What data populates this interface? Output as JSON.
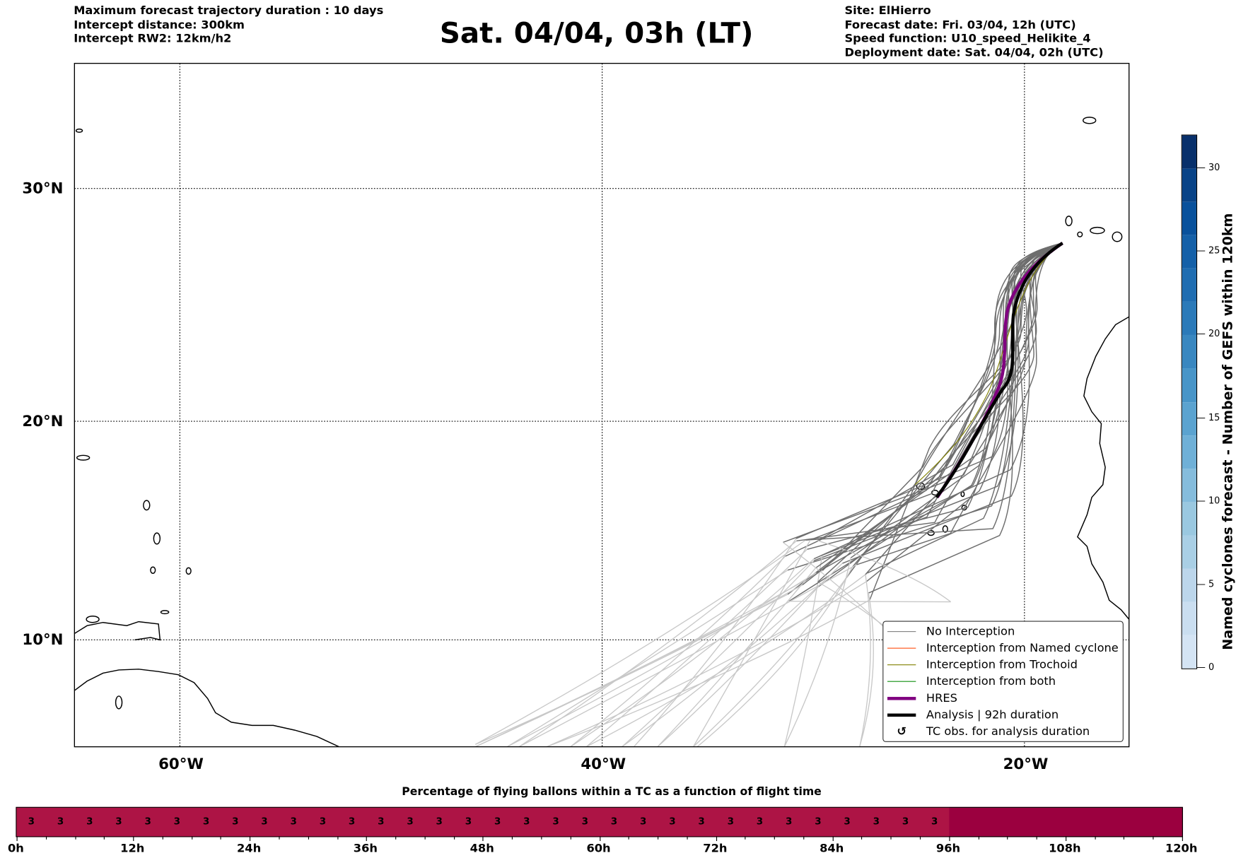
{
  "header": {
    "left": [
      "Maximum forecast trajectory duration : 10 days",
      "Intercept distance: 300km",
      "Intercept RW2: 12km/h2"
    ],
    "title": "Sat. 04/04, 03h (LT)",
    "right": [
      "Site: ElHierro",
      "Forecast date: Fri. 03/04, 12h (UTC)",
      "Speed function: U10_speed_Helikite_4",
      "Deployment date: Sat. 04/04, 02h (UTC)"
    ]
  },
  "map": {
    "lat_labels": [
      "30°N",
      "20°N",
      "10°N"
    ],
    "lon_labels": [
      "60°W",
      "40°W",
      "20°W"
    ]
  },
  "legend": [
    {
      "label": "No Interception",
      "color": "#808080",
      "kind": "thin"
    },
    {
      "label": "Interception from Named cyclone",
      "color": "#ff5010",
      "kind": "thin"
    },
    {
      "label": "Interception from Trochoid",
      "color": "#808000",
      "kind": "thin"
    },
    {
      "label": "Interception from both",
      "color": "#109010",
      "kind": "thin"
    },
    {
      "label": "HRES",
      "color": "#800080",
      "kind": "thick"
    },
    {
      "label": "Analysis | 92h duration",
      "color": "#000000",
      "kind": "thick"
    },
    {
      "label": "TC obs. for analysis duration",
      "symbol": "↺",
      "kind": "symbol"
    }
  ],
  "colorbar": {
    "label": "Named cyclones forecast - Number of GEFS within 120km",
    "ticks": [
      "0",
      "5",
      "10",
      "15",
      "20",
      "25",
      "30"
    ],
    "range": [
      0,
      32
    ],
    "colors": [
      "#d4e4f4",
      "#cadef0",
      "#bcd6eb",
      "#a9cfe5",
      "#9ac8e0",
      "#85bcdc",
      "#6fb0d7",
      "#5ba3d0",
      "#4895c8",
      "#3987c0",
      "#2b7ab9",
      "#1f6db1",
      "#1460a8",
      "#08519c",
      "#084387",
      "#08306b"
    ]
  },
  "flight_bar": {
    "title": "Percentage of flying ballons within a TC as a function of flight time",
    "cell_value": "3",
    "cell_count": 32,
    "cell_hours": 3,
    "active_until_h": 96,
    "max_h": 120,
    "active_color": "#ad1445",
    "inactive_color": "#9b003f",
    "tick_labels": [
      "0h",
      "12h",
      "24h",
      "36h",
      "48h",
      "60h",
      "72h",
      "84h",
      "96h",
      "108h",
      "120h"
    ]
  }
}
